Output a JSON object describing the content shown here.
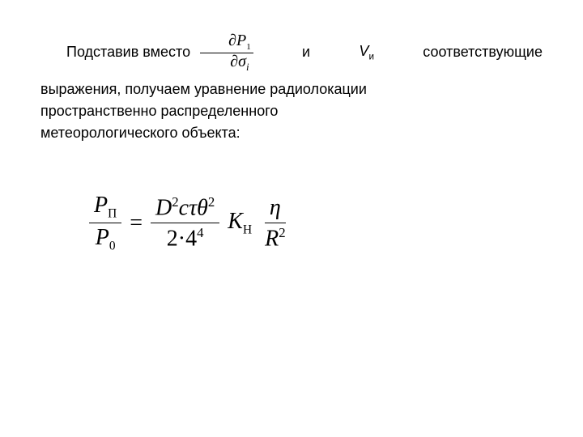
{
  "para1": {
    "lead": "Подставив   вместо",
    "connector": "и",
    "var_v": "V",
    "var_v_sub": "и",
    "tail": "соответствующие"
  },
  "frac_inline": {
    "partial": "∂",
    "num_var": "P",
    "num_sub": "1",
    "den_var": "σ",
    "den_sub": "i"
  },
  "para2": {
    "l1": "выражения,    получаем    уравнение    радиолокации",
    "l2": "пространственно                     распределенного",
    "l3": "метеорологического   объекта:"
  },
  "eq": {
    "lhs_num_var": "P",
    "lhs_num_sub": "П",
    "lhs_den_var": "P",
    "lhs_den_sub": "0",
    "equals": "=",
    "rhs_num_D": "D",
    "rhs_num_D_sup": "2",
    "rhs_num_c": "c",
    "rhs_num_tau": "τ",
    "rhs_num_theta": "θ",
    "rhs_num_theta_sup": "2",
    "rhs_den_2": "2",
    "rhs_den_dot": "·",
    "rhs_den_4": "4",
    "rhs_den_4_sup": "4",
    "K": "K",
    "K_sub": "Н",
    "eta": "η",
    "R": "R",
    "R_sup": "2"
  }
}
